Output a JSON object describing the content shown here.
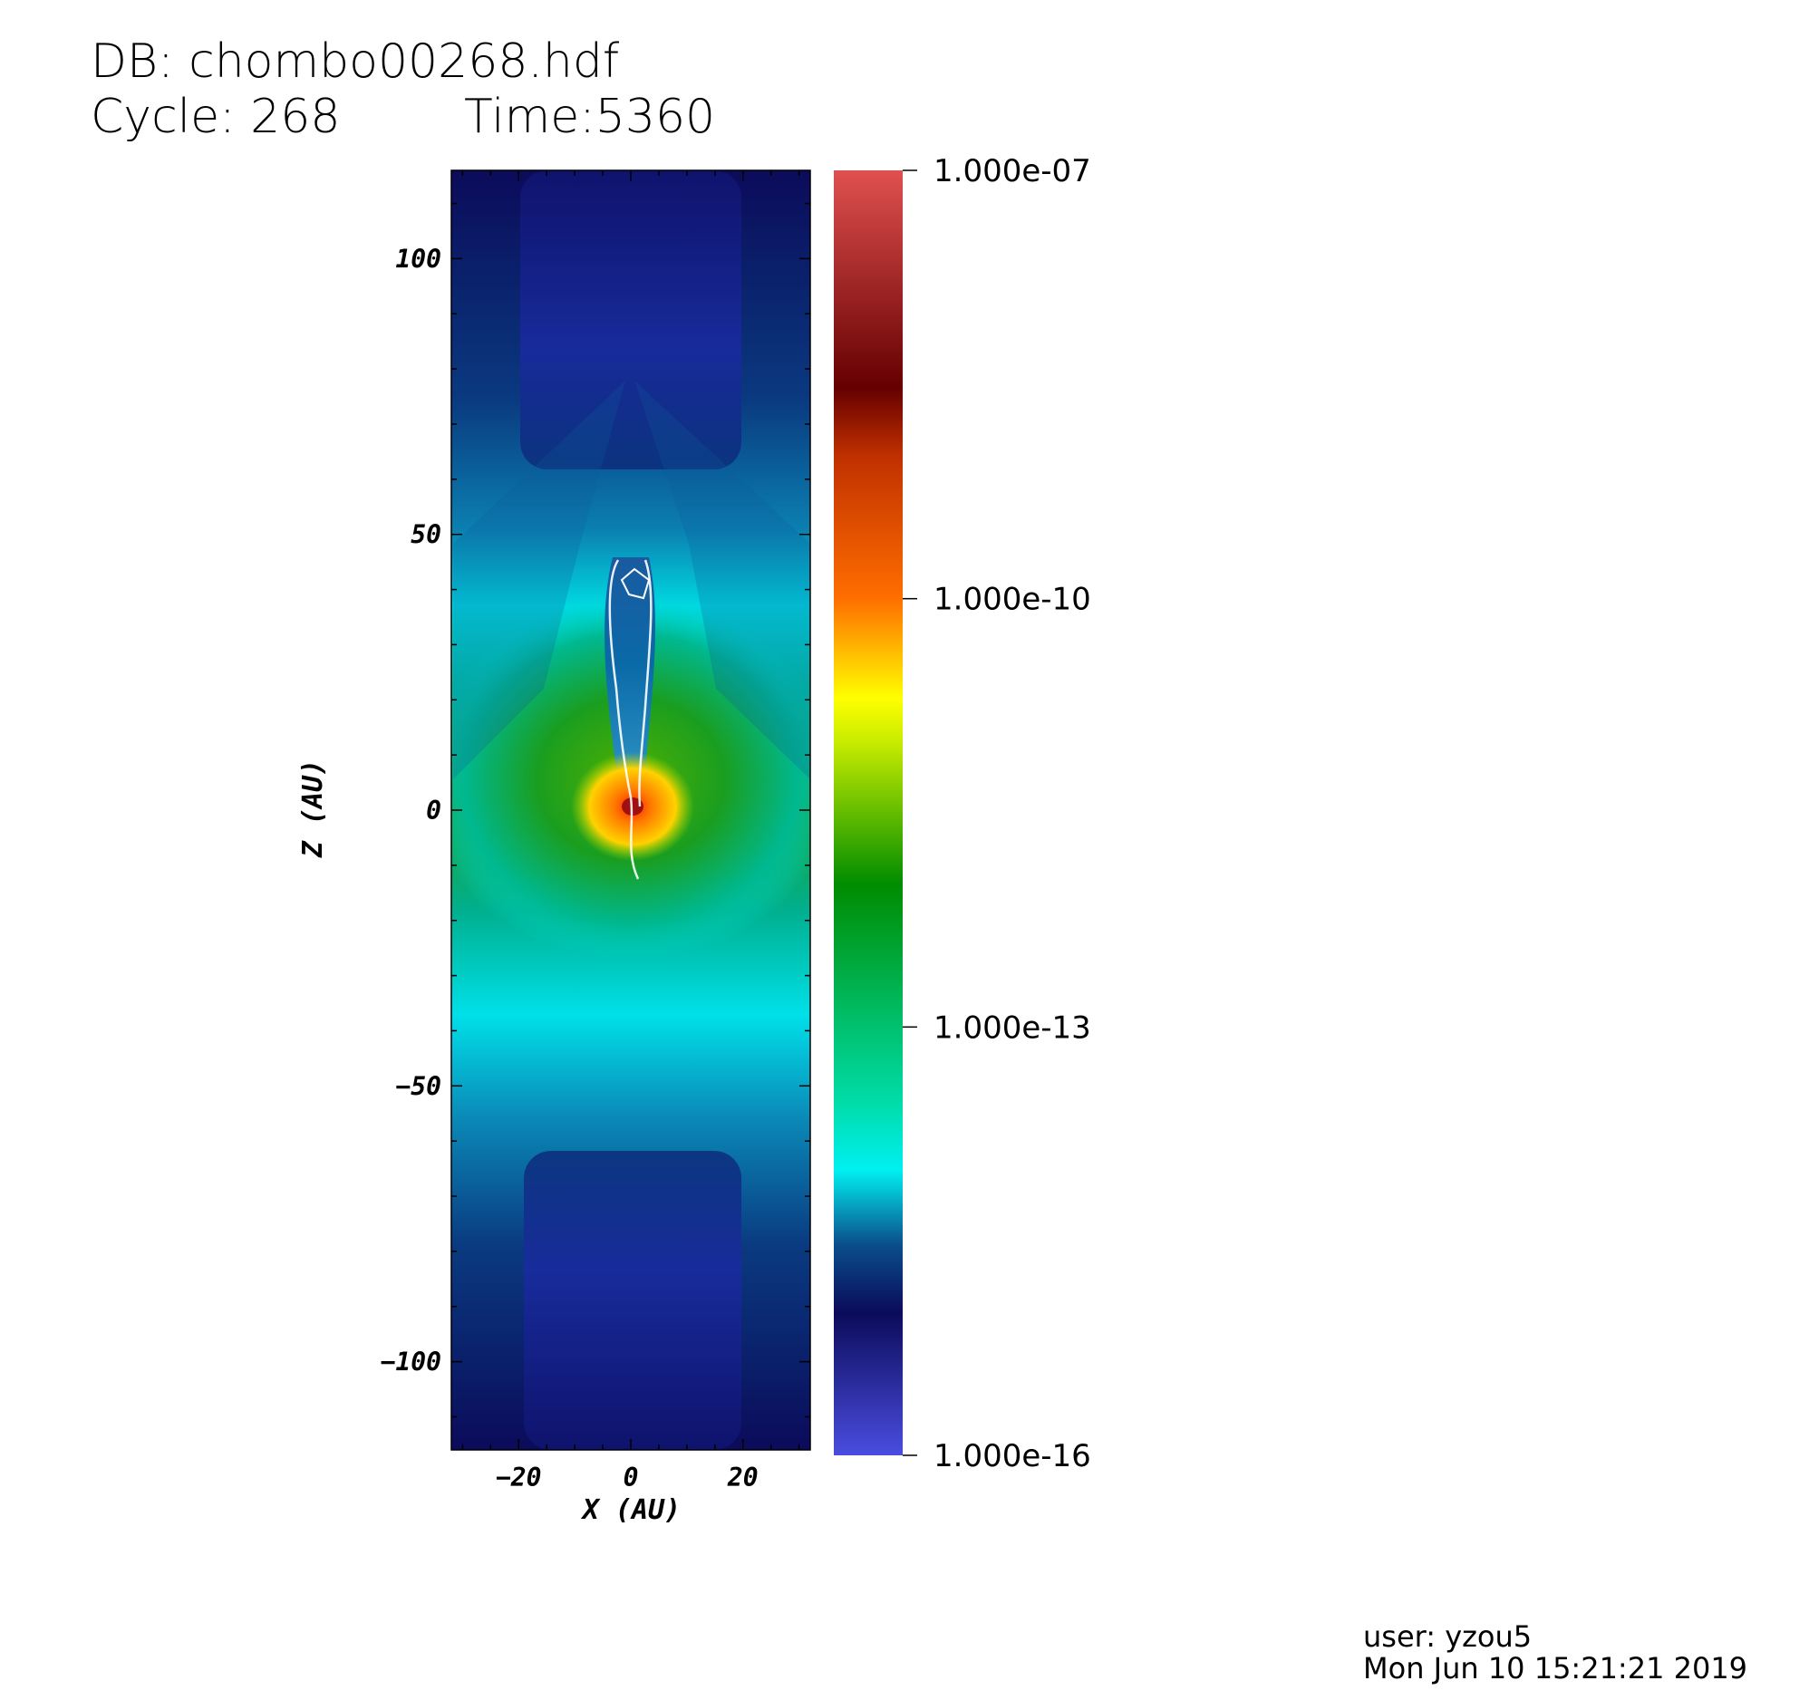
{
  "header": {
    "db": "DB: chombo00268.hdf",
    "cycle": "Cycle: 268",
    "time": "Time:5360"
  },
  "footer": {
    "user": "user: yzou5",
    "date": "Mon Jun 10 15:21:21 2019"
  },
  "chart_data": {
    "type": "heatmap",
    "xlabel": "X (AU)",
    "ylabel": "Z (AU)",
    "xlim": [
      -32,
      32
    ],
    "ylim": [
      -116,
      116
    ],
    "xticks": [
      -20,
      0,
      20
    ],
    "yticks": [
      100,
      50,
      0,
      -50,
      -100
    ],
    "xtick_labels": [
      "−20",
      "0",
      "20"
    ],
    "ytick_labels": [
      "100",
      "50",
      "0",
      "−50",
      "−100"
    ],
    "colorbar": {
      "scale": "log",
      "min": 1e-16,
      "max": 1e-07,
      "ticks": [
        1e-07,
        1e-10,
        1e-13,
        1e-16
      ],
      "tick_labels": [
        "1.000e-07",
        "1.000e-10",
        "1.000e-13",
        "1.000e-16"
      ],
      "colormap": [
        {
          "value": 1e-16,
          "color": "#4a4ddf"
        },
        {
          "value": 1e-15,
          "color": "#0b0b5a"
        },
        {
          "value": 3e-15,
          "color": "#0a4e8c"
        },
        {
          "value": 1e-14,
          "color": "#00f0f0"
        },
        {
          "value": 3e-14,
          "color": "#00dca8"
        },
        {
          "value": 1e-12,
          "color": "#008c00"
        },
        {
          "value": 1e-11,
          "color": "#c8ec00"
        },
        {
          "value": 2e-11,
          "color": "#ffff00"
        },
        {
          "value": 1e-10,
          "color": "#ff6e00"
        },
        {
          "value": 1e-09,
          "color": "#c03000"
        },
        {
          "value": 3e-09,
          "color": "#650000"
        },
        {
          "value": 1e-07,
          "color": "#e05050"
        }
      ]
    }
  }
}
